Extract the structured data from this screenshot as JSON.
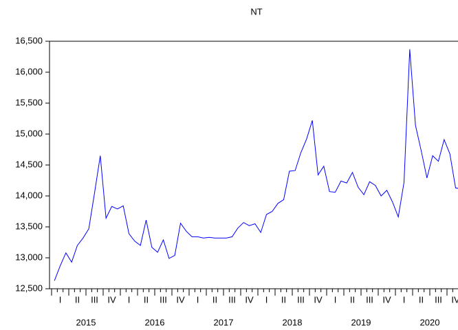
{
  "chart_data": {
    "type": "line",
    "title": "NT",
    "quarter_labels": [
      "I",
      "II",
      "III",
      "IV",
      "I",
      "II",
      "III",
      "IV",
      "I",
      "II",
      "III",
      "IV",
      "I",
      "II",
      "III",
      "IV",
      "I",
      "II",
      "III",
      "IV",
      "I",
      "II",
      "III",
      "IV"
    ],
    "year_labels": [
      "2015",
      "2016",
      "2017",
      "2018",
      "2019",
      "2020"
    ],
    "values": [
      12630,
      12870,
      13080,
      12930,
      13200,
      13320,
      13470,
      14050,
      14650,
      13640,
      13830,
      13790,
      13840,
      13390,
      13270,
      13200,
      13610,
      13170,
      13090,
      13290,
      12990,
      13040,
      13560,
      13430,
      13340,
      13340,
      13320,
      13330,
      13320,
      13320,
      13320,
      13340,
      13480,
      13570,
      13520,
      13550,
      13410,
      13700,
      13750,
      13880,
      13940,
      14400,
      14410,
      14700,
      14920,
      15220,
      14340,
      14480,
      14070,
      14060,
      14240,
      14210,
      14380,
      14140,
      14020,
      14230,
      14170,
      14000,
      14090,
      13900,
      13660,
      14220,
      16370,
      15140,
      14730,
      14290,
      14650,
      14560,
      14910,
      14680,
      14130,
      14110
    ],
    "color": "#0000ff",
    "ylim": [
      12500,
      16500
    ],
    "yticks": [
      {
        "value": 12500,
        "label": "12,500"
      },
      {
        "value": 13000,
        "label": "13,000"
      },
      {
        "value": 13500,
        "label": "13,500"
      },
      {
        "value": 14000,
        "label": "14,000"
      },
      {
        "value": 14500,
        "label": "14,500"
      },
      {
        "value": 15000,
        "label": "15,000"
      },
      {
        "value": 15500,
        "label": "15,500"
      },
      {
        "value": 16000,
        "label": "16,000"
      },
      {
        "value": 16500,
        "label": "16,500"
      }
    ]
  }
}
